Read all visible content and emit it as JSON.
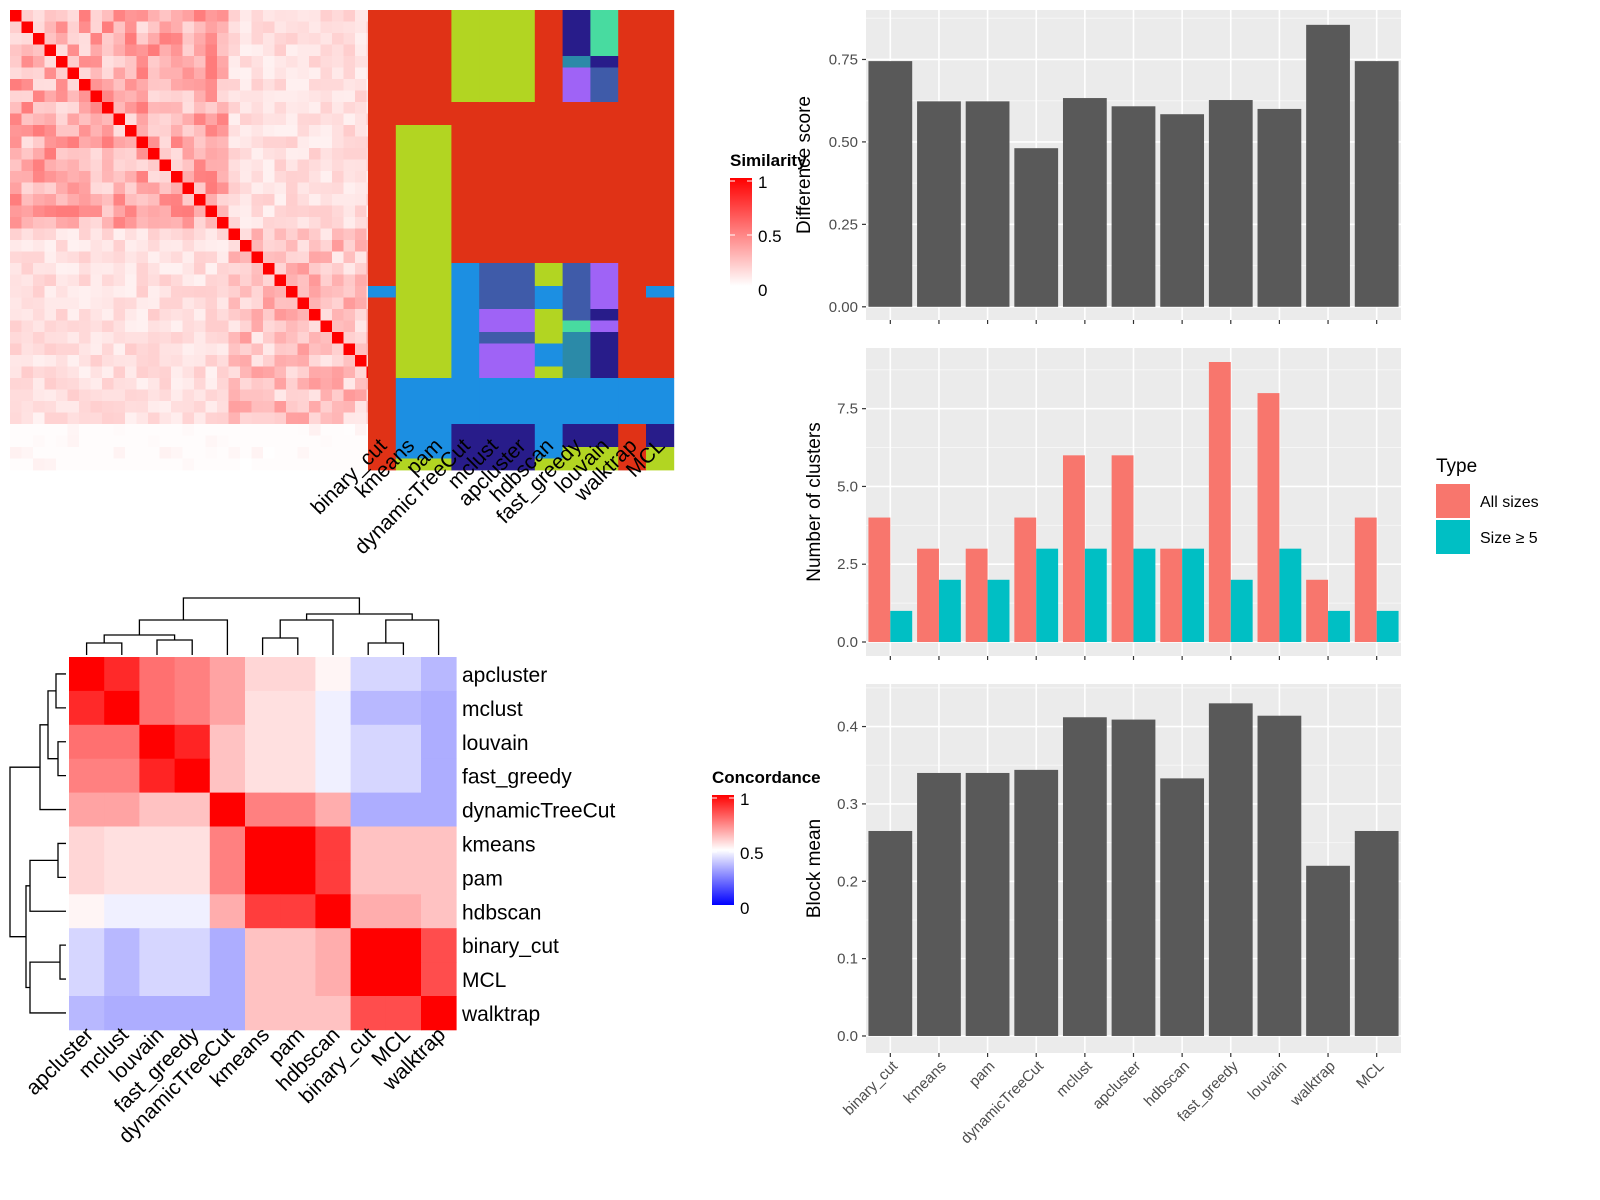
{
  "chart_data": [
    {
      "type": "heatmap",
      "panel": "similarity-heatmap",
      "legend": {
        "title": "Similarity",
        "ticks": [
          "1",
          "0.5",
          "0"
        ],
        "colors": [
          "#ffffff",
          "#ff0000"
        ]
      },
      "column_labels": [
        "binary_cut",
        "kmeans",
        "pam",
        "dynamicTreeCut",
        "mclust",
        "apcluster",
        "hdbscan",
        "fast_greedy",
        "louvain",
        "walktrap",
        "MCL"
      ],
      "rows": 40,
      "class_colors": {
        "red": "#e03216",
        "lime": "#b2d522",
        "blue": "#1c8fe2",
        "navy": "#281c8a",
        "steel": "#3f5ba9",
        "violet": "#9f63f6",
        "teal": "#2b8aa8",
        "mint": "#48dba0"
      }
    },
    {
      "type": "heatmap",
      "panel": "concordance-heatmap",
      "legend": {
        "title": "Concordance",
        "ticks": [
          "1",
          "0.5",
          "0"
        ]
      },
      "row_labels": [
        "apcluster",
        "mclust",
        "louvain",
        "fast_greedy",
        "dynamicTreeCut",
        "kmeans",
        "pam",
        "hdbscan",
        "binary_cut",
        "MCL",
        "walktrap"
      ],
      "col_labels": [
        "apcluster",
        "mclust",
        "louvain",
        "fast_greedy",
        "dynamicTreeCut",
        "kmeans",
        "pam",
        "hdbscan",
        "binary_cut",
        "MCL",
        "walktrap"
      ],
      "values": [
        [
          1.0,
          0.92,
          0.78,
          0.75,
          0.68,
          0.58,
          0.58,
          0.52,
          0.42,
          0.42,
          0.36
        ],
        [
          0.92,
          1.0,
          0.78,
          0.75,
          0.68,
          0.56,
          0.56,
          0.47,
          0.36,
          0.36,
          0.34
        ],
        [
          0.78,
          0.78,
          1.0,
          0.93,
          0.62,
          0.56,
          0.56,
          0.47,
          0.42,
          0.42,
          0.34
        ],
        [
          0.75,
          0.75,
          0.93,
          1.0,
          0.62,
          0.56,
          0.56,
          0.47,
          0.42,
          0.42,
          0.34
        ],
        [
          0.68,
          0.68,
          0.62,
          0.62,
          1.0,
          0.75,
          0.75,
          0.66,
          0.34,
          0.34,
          0.34
        ],
        [
          0.58,
          0.56,
          0.56,
          0.56,
          0.75,
          1.0,
          1.0,
          0.88,
          0.62,
          0.62,
          0.62
        ],
        [
          0.58,
          0.56,
          0.56,
          0.56,
          0.75,
          1.0,
          1.0,
          0.88,
          0.62,
          0.62,
          0.62
        ],
        [
          0.52,
          0.47,
          0.47,
          0.47,
          0.66,
          0.88,
          0.88,
          1.0,
          0.66,
          0.66,
          0.62
        ],
        [
          0.42,
          0.36,
          0.42,
          0.42,
          0.34,
          0.62,
          0.62,
          0.66,
          1.0,
          1.0,
          0.85
        ],
        [
          0.42,
          0.36,
          0.42,
          0.42,
          0.34,
          0.62,
          0.62,
          0.66,
          1.0,
          1.0,
          0.85
        ],
        [
          0.36,
          0.34,
          0.34,
          0.34,
          0.34,
          0.62,
          0.62,
          0.62,
          0.85,
          0.85,
          1.0
        ]
      ]
    },
    {
      "type": "bar",
      "panel": "difference-score",
      "categories": [
        "binary_cut",
        "kmeans",
        "pam",
        "dynamicTreeCut",
        "mclust",
        "apcluster",
        "hdbscan",
        "fast_greedy",
        "louvain",
        "walktrap",
        "MCL"
      ],
      "values": [
        0.745,
        0.623,
        0.623,
        0.481,
        0.633,
        0.608,
        0.584,
        0.627,
        0.6,
        0.855,
        0.745
      ],
      "ylabel": "Difference score",
      "ylim": [
        -0.04,
        0.9
      ],
      "yticks": [
        0.0,
        0.25,
        0.5,
        0.75
      ],
      "ytick_labels": [
        "0.00",
        "0.25",
        "0.50",
        "0.75"
      ],
      "color": "#595959"
    },
    {
      "type": "bar",
      "panel": "number-of-clusters",
      "categories": [
        "binary_cut",
        "kmeans",
        "pam",
        "dynamicTreeCut",
        "mclust",
        "apcluster",
        "hdbscan",
        "fast_greedy",
        "louvain",
        "walktrap",
        "MCL"
      ],
      "series": [
        {
          "name": "All sizes",
          "values": [
            4,
            3,
            3,
            4,
            6,
            6,
            3,
            9,
            8,
            2,
            4
          ],
          "color": "#f8766d"
        },
        {
          "name": "Size ≥ 5",
          "values": [
            1,
            2,
            2,
            3,
            3,
            3,
            3,
            2,
            3,
            1,
            1
          ],
          "color": "#00bfc4"
        }
      ],
      "ylabel": "Number of clusters",
      "ylim": [
        -0.45,
        9.45
      ],
      "yticks": [
        0,
        2.5,
        5,
        7.5
      ],
      "ytick_labels": [
        "0.0",
        "2.5",
        "5.0",
        "7.5"
      ],
      "legend": {
        "title": "Type",
        "position": "right"
      }
    },
    {
      "type": "bar",
      "panel": "block-mean",
      "categories": [
        "binary_cut",
        "kmeans",
        "pam",
        "dynamicTreeCut",
        "mclust",
        "apcluster",
        "hdbscan",
        "fast_greedy",
        "louvain",
        "walktrap",
        "MCL"
      ],
      "values": [
        0.265,
        0.34,
        0.34,
        0.344,
        0.412,
        0.409,
        0.333,
        0.43,
        0.414,
        0.22,
        0.265
      ],
      "ylabel": "Block mean",
      "ylim": [
        -0.022,
        0.455
      ],
      "yticks": [
        0.0,
        0.1,
        0.2,
        0.3,
        0.4
      ],
      "ytick_labels": [
        "0.0",
        "0.1",
        "0.2",
        "0.3",
        "0.4"
      ],
      "color": "#595959"
    }
  ]
}
